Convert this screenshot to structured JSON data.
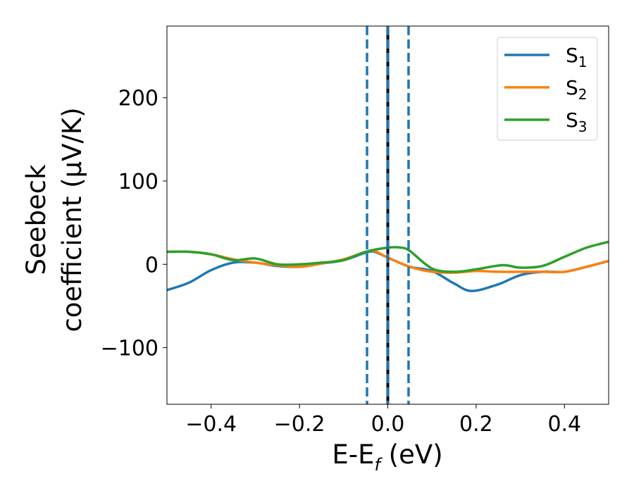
{
  "chart_data": {
    "type": "line",
    "xlabel": "E-E",
    "xlabel_sub": "f",
    "xlabel_unit": " (eV)",
    "ylabel_line1": "Seebeck",
    "ylabel_line2": "coefficient  (μV/K)",
    "xlim": [
      -0.5,
      0.5
    ],
    "ylim": [
      -168,
      286
    ],
    "x_ticks": [
      -0.4,
      -0.2,
      0.0,
      0.2,
      0.4
    ],
    "x_tick_labels": [
      "−0.4",
      "−0.2",
      "0.0",
      "0.2",
      "0.4"
    ],
    "y_ticks": [
      -100,
      0,
      100,
      200
    ],
    "y_tick_labels": [
      "−100",
      "0",
      "100",
      "200"
    ],
    "legend_position": "top-right",
    "vertical_lines": [
      {
        "x": -0.047,
        "style": "dashed",
        "color": "#1f77b4"
      },
      {
        "x": 0.0,
        "style": "solid",
        "color": "#000000"
      },
      {
        "x": 0.0,
        "style": "dashed",
        "color": "#1f77b4"
      },
      {
        "x": 0.047,
        "style": "dashed",
        "color": "#1f77b4"
      }
    ],
    "series": [
      {
        "name": "S",
        "subscript": "1",
        "color": "#1f77b4",
        "x": [
          -0.5,
          -0.45,
          -0.4,
          -0.35,
          -0.3,
          -0.25,
          -0.2,
          -0.15,
          -0.1,
          -0.05,
          -0.03,
          0.0,
          0.05,
          0.1,
          0.15,
          0.19,
          0.25,
          0.3,
          0.35,
          0.4,
          0.45,
          0.5
        ],
        "values": [
          -31,
          -22,
          -7,
          2,
          2,
          -2,
          -3,
          1,
          5,
          14,
          15,
          8,
          -3,
          -8,
          -23,
          -32,
          -24,
          -13,
          -9,
          -9,
          -3,
          4
        ]
      },
      {
        "name": "S",
        "subscript": "2",
        "color": "#ff7f0e",
        "x": [
          -0.5,
          -0.45,
          -0.4,
          -0.35,
          -0.3,
          -0.25,
          -0.2,
          -0.15,
          -0.1,
          -0.05,
          -0.03,
          0.0,
          0.05,
          0.1,
          0.15,
          0.2,
          0.25,
          0.3,
          0.35,
          0.4,
          0.45,
          0.5
        ],
        "values": [
          15,
          15,
          12,
          6,
          2,
          -1,
          -3,
          1,
          6,
          15,
          16,
          8,
          -3,
          -9,
          -10,
          -8,
          -9,
          -9,
          -9,
          -9,
          -3,
          4
        ]
      },
      {
        "name": "S",
        "subscript": "3",
        "color": "#2ca02c",
        "x": [
          -0.5,
          -0.45,
          -0.4,
          -0.35,
          -0.3,
          -0.25,
          -0.2,
          -0.15,
          -0.1,
          -0.05,
          0.0,
          0.03,
          0.05,
          0.1,
          0.15,
          0.2,
          0.26,
          0.3,
          0.35,
          0.4,
          0.45,
          0.5
        ],
        "values": [
          15,
          15,
          12,
          5,
          7,
          0,
          0,
          2,
          5,
          15,
          20,
          20,
          16,
          -5,
          -9,
          -6,
          -1,
          -4,
          -2,
          9,
          20,
          27
        ]
      }
    ]
  }
}
